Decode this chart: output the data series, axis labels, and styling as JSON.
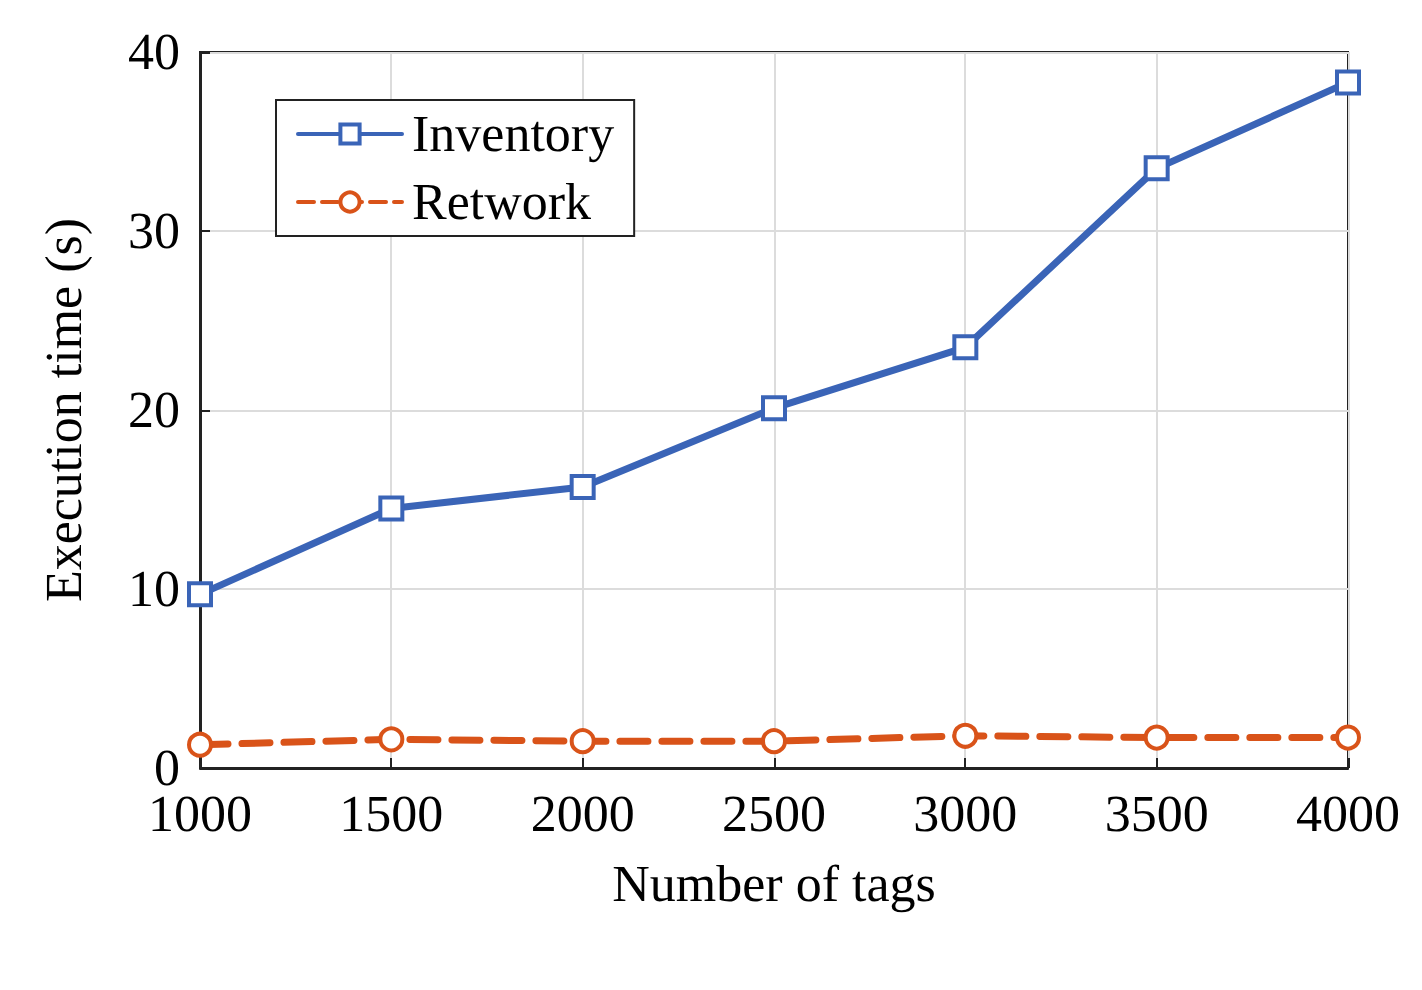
{
  "chart_data": {
    "type": "line",
    "xlabel": "Number of tags",
    "ylabel": "Execution time (s)",
    "x": [
      1000,
      1500,
      2000,
      2500,
      3000,
      3500,
      4000
    ],
    "series": [
      {
        "name": "Inventory",
        "color": "#3a64b7",
        "marker": "square",
        "line_style": "solid",
        "values": [
          9.7,
          14.5,
          15.7,
          20.1,
          23.5,
          33.5,
          38.3
        ]
      },
      {
        "name": "Retwork",
        "color": "#d95319",
        "marker": "circle",
        "line_style": "dashed",
        "values": [
          1.3,
          1.6,
          1.5,
          1.5,
          1.8,
          1.7,
          1.7
        ]
      }
    ],
    "xlim": [
      1000,
      4000
    ],
    "xticks": [
      1000,
      1500,
      2000,
      2500,
      3000,
      3500,
      4000
    ],
    "ylim": [
      0,
      40
    ],
    "yticks": [
      0,
      10,
      20,
      30,
      40
    ],
    "grid": true,
    "legend": "top left"
  }
}
